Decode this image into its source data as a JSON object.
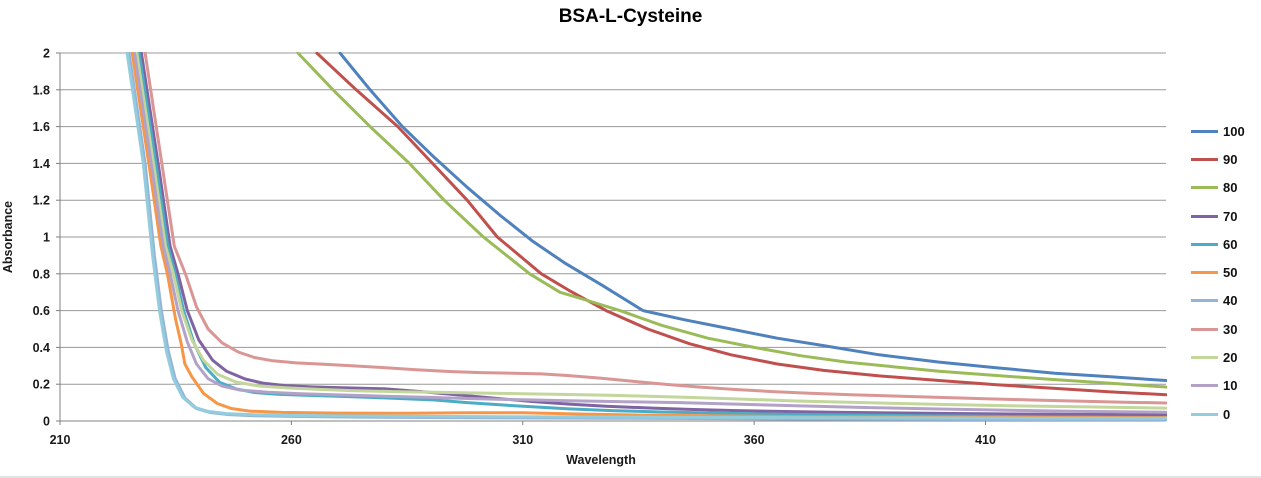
{
  "chart_data": {
    "type": "line",
    "title": "BSA-L-Cysteine",
    "xlabel": "Wavelength",
    "ylabel": "Absorbance",
    "xlim": [
      210,
      449
    ],
    "ylim": [
      0,
      2
    ],
    "x_ticks": [
      210,
      260,
      310,
      360,
      410
    ],
    "y_ticks": [
      0,
      0.2,
      0.4,
      0.6,
      0.8,
      1,
      1.2,
      1.4,
      1.6,
      1.8,
      2
    ],
    "y_tick_labels": [
      "0",
      "0.2",
      "0.4",
      "0.6",
      "0.8",
      "1",
      "1.2",
      "1.4",
      "1.6",
      "1.8",
      "2"
    ],
    "grid": "horizontal",
    "legend_position": "right",
    "series": [
      {
        "name": "100",
        "color": "#4F81BD",
        "points": [
          [
            270.5,
            2
          ],
          [
            277,
            1.8
          ],
          [
            284,
            1.6
          ],
          [
            291,
            1.43
          ],
          [
            298,
            1.27
          ],
          [
            305,
            1.12
          ],
          [
            312,
            0.98
          ],
          [
            319,
            0.86
          ],
          [
            327,
            0.74
          ],
          [
            336,
            0.6
          ],
          [
            345,
            0.55
          ],
          [
            355,
            0.5
          ],
          [
            365,
            0.45
          ],
          [
            375,
            0.41
          ],
          [
            387,
            0.36
          ],
          [
            400,
            0.32
          ],
          [
            412,
            0.29
          ],
          [
            425,
            0.26
          ],
          [
            437,
            0.24
          ],
          [
            449,
            0.22
          ]
        ]
      },
      {
        "name": "90",
        "color": "#C0504D",
        "points": [
          [
            265.5,
            2
          ],
          [
            274,
            1.8
          ],
          [
            283,
            1.6
          ],
          [
            290.5,
            1.4
          ],
          [
            298,
            1.2
          ],
          [
            304.5,
            1.0
          ],
          [
            314,
            0.8
          ],
          [
            320,
            0.71
          ],
          [
            328,
            0.6
          ],
          [
            337,
            0.5
          ],
          [
            346,
            0.42
          ],
          [
            355,
            0.36
          ],
          [
            365,
            0.31
          ],
          [
            375,
            0.275
          ],
          [
            387,
            0.245
          ],
          [
            400,
            0.22
          ],
          [
            412,
            0.198
          ],
          [
            425,
            0.177
          ],
          [
            437,
            0.158
          ],
          [
            449,
            0.143
          ]
        ]
      },
      {
        "name": "80",
        "color": "#9BBB59",
        "points": [
          [
            261.4,
            2
          ],
          [
            269,
            1.8
          ],
          [
            277,
            1.6
          ],
          [
            285.5,
            1.4
          ],
          [
            293,
            1.2
          ],
          [
            301.5,
            1.0
          ],
          [
            311.5,
            0.8
          ],
          [
            318,
            0.7
          ],
          [
            324,
            0.655
          ],
          [
            331,
            0.6
          ],
          [
            340,
            0.52
          ],
          [
            350,
            0.45
          ],
          [
            360,
            0.4
          ],
          [
            370,
            0.355
          ],
          [
            380,
            0.32
          ],
          [
            390,
            0.295
          ],
          [
            400,
            0.27
          ],
          [
            412,
            0.248
          ],
          [
            425,
            0.225
          ],
          [
            437,
            0.205
          ],
          [
            449,
            0.185
          ]
        ]
      },
      {
        "name": "70",
        "color": "#8064A2",
        "points": [
          [
            227.6,
            2
          ],
          [
            231.5,
            1.35
          ],
          [
            233.8,
            0.95
          ],
          [
            235.5,
            0.8
          ],
          [
            237.5,
            0.6
          ],
          [
            240,
            0.44
          ],
          [
            243,
            0.33
          ],
          [
            246,
            0.27
          ],
          [
            250,
            0.228
          ],
          [
            254,
            0.205
          ],
          [
            259,
            0.192
          ],
          [
            265,
            0.185
          ],
          [
            272,
            0.18
          ],
          [
            280,
            0.175
          ],
          [
            288,
            0.16
          ],
          [
            296,
            0.142
          ],
          [
            304,
            0.124
          ],
          [
            312,
            0.106
          ],
          [
            320,
            0.092
          ],
          [
            328,
            0.08
          ],
          [
            338,
            0.07
          ],
          [
            346,
            0.063
          ],
          [
            355,
            0.057
          ],
          [
            365,
            0.052
          ],
          [
            377,
            0.048
          ],
          [
            390,
            0.044
          ],
          [
            403,
            0.041
          ],
          [
            416,
            0.038
          ],
          [
            430,
            0.036
          ],
          [
            449,
            0.034
          ]
        ]
      },
      {
        "name": "60",
        "color": "#4BACC6",
        "points": [
          [
            227.1,
            2
          ],
          [
            231,
            1.35
          ],
          [
            233.3,
            0.95
          ],
          [
            234.9,
            0.8
          ],
          [
            236.7,
            0.6
          ],
          [
            239,
            0.42
          ],
          [
            241.5,
            0.29
          ],
          [
            244.5,
            0.21
          ],
          [
            248,
            0.175
          ],
          [
            252,
            0.155
          ],
          [
            257,
            0.145
          ],
          [
            263,
            0.14
          ],
          [
            270,
            0.135
          ],
          [
            277,
            0.128
          ],
          [
            284,
            0.122
          ],
          [
            291,
            0.114
          ],
          [
            298,
            0.1
          ],
          [
            305,
            0.088
          ],
          [
            312,
            0.077
          ],
          [
            320,
            0.066
          ],
          [
            330,
            0.056
          ],
          [
            340,
            0.049
          ],
          [
            352,
            0.043
          ],
          [
            365,
            0.037
          ],
          [
            380,
            0.033
          ],
          [
            395,
            0.029
          ],
          [
            410,
            0.026
          ],
          [
            425,
            0.022
          ],
          [
            437,
            0.02
          ],
          [
            449,
            0.018
          ]
        ]
      },
      {
        "name": "50",
        "color": "#F79646",
        "points": [
          [
            225.6,
            2
          ],
          [
            229.5,
            1.35
          ],
          [
            231.8,
            0.95
          ],
          [
            233.2,
            0.8
          ],
          [
            235,
            0.55
          ],
          [
            236.2,
            0.42
          ],
          [
            237,
            0.31
          ],
          [
            238.5,
            0.24
          ],
          [
            241,
            0.15
          ],
          [
            244,
            0.095
          ],
          [
            247,
            0.068
          ],
          [
            251,
            0.054
          ],
          [
            258,
            0.047
          ],
          [
            270,
            0.043
          ],
          [
            285,
            0.042
          ],
          [
            298,
            0.045
          ],
          [
            310,
            0.045
          ],
          [
            322,
            0.038
          ],
          [
            335,
            0.032
          ],
          [
            350,
            0.028
          ],
          [
            370,
            0.024
          ],
          [
            395,
            0.021
          ],
          [
            420,
            0.019
          ],
          [
            449,
            0.018
          ]
        ]
      },
      {
        "name": "40",
        "color": "#95B3D7",
        "points": [
          [
            224.9,
            2
          ],
          [
            228.4,
            1.4
          ],
          [
            230.4,
            0.9
          ],
          [
            231.9,
            0.6
          ],
          [
            233.4,
            0.38
          ],
          [
            234.9,
            0.23
          ],
          [
            237,
            0.125
          ],
          [
            239.5,
            0.068
          ],
          [
            242.5,
            0.046
          ],
          [
            246.5,
            0.035
          ],
          [
            252,
            0.029
          ],
          [
            260,
            0.025
          ],
          [
            275,
            0.021
          ],
          [
            300,
            0.018
          ],
          [
            330,
            0.015
          ],
          [
            360,
            0.012
          ],
          [
            390,
            0.01
          ],
          [
            420,
            0.008
          ],
          [
            449,
            0.007
          ]
        ]
      },
      {
        "name": "30",
        "color": "#D99694",
        "points": [
          [
            228.4,
            2
          ],
          [
            232.3,
            1.35
          ],
          [
            234.7,
            0.95
          ],
          [
            237.1,
            0.8
          ],
          [
            239.5,
            0.62
          ],
          [
            242,
            0.5
          ],
          [
            245,
            0.425
          ],
          [
            248.5,
            0.375
          ],
          [
            252,
            0.345
          ],
          [
            256,
            0.327
          ],
          [
            261,
            0.316
          ],
          [
            267,
            0.308
          ],
          [
            273,
            0.3
          ],
          [
            280,
            0.29
          ],
          [
            287,
            0.278
          ],
          [
            294,
            0.269
          ],
          [
            301,
            0.263
          ],
          [
            308,
            0.26
          ],
          [
            314,
            0.256
          ],
          [
            320,
            0.247
          ],
          [
            327,
            0.232
          ],
          [
            334,
            0.215
          ],
          [
            341,
            0.199
          ],
          [
            348,
            0.185
          ],
          [
            356,
            0.171
          ],
          [
            364,
            0.16
          ],
          [
            372,
            0.151
          ],
          [
            381,
            0.143
          ],
          [
            390,
            0.136
          ],
          [
            400,
            0.128
          ],
          [
            410,
            0.121
          ],
          [
            420,
            0.114
          ],
          [
            430,
            0.108
          ],
          [
            440,
            0.102
          ],
          [
            449,
            0.098
          ]
        ]
      },
      {
        "name": "20",
        "color": "#C3D69B",
        "points": [
          [
            226.6,
            2
          ],
          [
            230.5,
            1.35
          ],
          [
            232.8,
            0.95
          ],
          [
            234.5,
            0.8
          ],
          [
            236.3,
            0.6
          ],
          [
            238.5,
            0.44
          ],
          [
            241,
            0.33
          ],
          [
            244,
            0.255
          ],
          [
            248,
            0.212
          ],
          [
            253,
            0.19
          ],
          [
            259,
            0.18
          ],
          [
            266,
            0.172
          ],
          [
            273,
            0.165
          ],
          [
            282,
            0.16
          ],
          [
            291,
            0.156
          ],
          [
            300,
            0.152
          ],
          [
            310,
            0.148
          ],
          [
            320,
            0.144
          ],
          [
            330,
            0.139
          ],
          [
            344,
            0.13
          ],
          [
            356,
            0.12
          ],
          [
            370,
            0.108
          ],
          [
            385,
            0.099
          ],
          [
            400,
            0.09
          ],
          [
            415,
            0.083
          ],
          [
            430,
            0.077
          ],
          [
            449,
            0.07
          ]
        ]
      },
      {
        "name": "10",
        "color": "#B3A2C7",
        "points": [
          [
            226.1,
            2
          ],
          [
            230,
            1.35
          ],
          [
            232.3,
            0.95
          ],
          [
            233.8,
            0.8
          ],
          [
            235.5,
            0.6
          ],
          [
            237.5,
            0.43
          ],
          [
            239.5,
            0.31
          ],
          [
            242,
            0.23
          ],
          [
            245,
            0.19
          ],
          [
            249,
            0.168
          ],
          [
            255,
            0.156
          ],
          [
            262,
            0.148
          ],
          [
            270,
            0.142
          ],
          [
            280,
            0.135
          ],
          [
            290,
            0.128
          ],
          [
            300,
            0.121
          ],
          [
            310,
            0.115
          ],
          [
            320,
            0.11
          ],
          [
            332,
            0.105
          ],
          [
            344,
            0.1
          ],
          [
            356,
            0.092
          ],
          [
            370,
            0.082
          ],
          [
            385,
            0.073
          ],
          [
            400,
            0.065
          ],
          [
            415,
            0.058
          ],
          [
            430,
            0.052
          ],
          [
            449,
            0.048
          ]
        ]
      },
      {
        "name": "0",
        "color": "#93CDDD",
        "points": [
          [
            224.5,
            2
          ],
          [
            228,
            1.4
          ],
          [
            230,
            0.9
          ],
          [
            231.5,
            0.6
          ],
          [
            233,
            0.38
          ],
          [
            234.5,
            0.23
          ],
          [
            236.5,
            0.13
          ],
          [
            239,
            0.075
          ],
          [
            242,
            0.052
          ],
          [
            246,
            0.04
          ],
          [
            252,
            0.034
          ],
          [
            260,
            0.03
          ],
          [
            275,
            0.027
          ],
          [
            300,
            0.024
          ],
          [
            330,
            0.022
          ],
          [
            360,
            0.019
          ],
          [
            390,
            0.017
          ],
          [
            420,
            0.015
          ],
          [
            449,
            0.014
          ]
        ]
      }
    ]
  }
}
